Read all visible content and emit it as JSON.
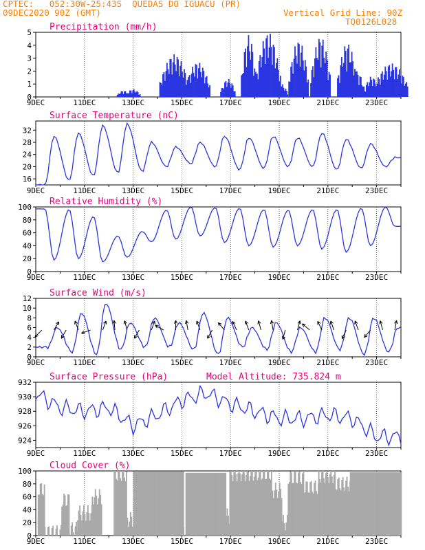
{
  "header": {
    "line1": "CPTEC:   052:30W-25:43S  QUEDAS DO IGUACU (PR)",
    "line2": "09DEC2020 90Z (GMT)",
    "vgrid": "Vertical Grid Line: 90Z",
    "code": "TQ0126L028"
  },
  "colors": {
    "header": "#ff7f00",
    "title": "#e8007a",
    "line": "#2a35e0",
    "bars": "#2a35e0",
    "cloud": "#a9a9a9"
  },
  "chart_data": [
    {
      "type": "bar",
      "title": "Precipitation (mm/h)",
      "x_ticks": [
        "9DEC",
        "11DEC",
        "13DEC",
        "15DEC",
        "17DEC",
        "19DEC",
        "21DEC",
        "23DEC"
      ],
      "x_range_days": [
        9,
        24
      ],
      "ylim": [
        0,
        5
      ],
      "y_ticks": [
        0,
        1,
        2,
        3,
        4,
        5
      ],
      "bursts": [
        {
          "center": 12.6,
          "width": 0.25,
          "peak": 0.5
        },
        {
          "center": 13.0,
          "width": 0.3,
          "peak": 0.6
        },
        {
          "center": 14.7,
          "width": 0.6,
          "peak": 3.3
        },
        {
          "center": 15.65,
          "width": 0.5,
          "peak": 2.7
        },
        {
          "center": 16.9,
          "width": 0.3,
          "peak": 1.4
        },
        {
          "center": 17.75,
          "width": 0.3,
          "peak": 4.8
        },
        {
          "center": 18.55,
          "width": 0.5,
          "peak": 5.0
        },
        {
          "center": 19.1,
          "width": 0.25,
          "peak": 1.0
        },
        {
          "center": 19.8,
          "width": 0.4,
          "peak": 4.4
        },
        {
          "center": 20.7,
          "width": 0.4,
          "peak": 4.7
        },
        {
          "center": 21.8,
          "width": 0.4,
          "peak": 4.2
        },
        {
          "center": 22.2,
          "width": 0.3,
          "peak": 2.0
        },
        {
          "center": 22.8,
          "width": 0.3,
          "peak": 1.6
        },
        {
          "center": 23.6,
          "width": 0.7,
          "peak": 2.6
        }
      ]
    },
    {
      "type": "line",
      "title": "Surface Temperature (nC)",
      "x_ticks": [
        "9DEC",
        "11DEC",
        "13DEC",
        "15DEC",
        "17DEC",
        "19DEC",
        "21DEC",
        "23DEC"
      ],
      "ylim": [
        14,
        35
      ],
      "y_ticks": [
        16,
        20,
        24,
        28,
        32
      ],
      "daily_min": [
        14.0,
        15.5,
        17.0,
        18.0,
        18.5,
        20.0,
        21.0,
        20.0,
        19.0,
        19.5,
        20.0,
        20.0,
        19.0,
        19.5,
        20.0
      ],
      "daily_max": [
        30.0,
        31.0,
        33.5,
        34.0,
        28.0,
        26.5,
        28.0,
        30.0,
        29.5,
        30.0,
        29.5,
        31.0,
        29.0,
        27.5,
        23.0
      ],
      "hour_of_min": 9,
      "hour_of_max": 18
    },
    {
      "type": "line",
      "title": "Relative Humidity (%)",
      "x_ticks": [
        "9DEC",
        "11DEC",
        "13DEC",
        "15DEC",
        "17DEC",
        "19DEC",
        "21DEC",
        "23DEC"
      ],
      "ylim": [
        0,
        100
      ],
      "y_ticks": [
        0,
        20,
        40,
        60,
        80,
        100
      ],
      "daily_max": [
        97,
        96,
        85,
        55,
        62,
        95,
        100,
        99,
        98,
        96,
        95,
        96,
        96,
        98,
        100
      ],
      "daily_min": [
        18,
        20,
        15,
        22,
        46,
        50,
        55,
        45,
        40,
        38,
        40,
        35,
        30,
        40,
        70
      ],
      "hour_of_min": 18,
      "hour_of_max": 9
    },
    {
      "type": "line",
      "title": "Surface Wind (m/s)",
      "x_ticks": [
        "9DEC",
        "11DEC",
        "13DEC",
        "15DEC",
        "17DEC",
        "19DEC",
        "21DEC",
        "23DEC"
      ],
      "ylim": [
        0,
        12
      ],
      "y_ticks": [
        0,
        2,
        4,
        6,
        8,
        10,
        12
      ],
      "daily_min": [
        2.0,
        1.0,
        0.5,
        1.5,
        2.0,
        2.0,
        1.5,
        0.5,
        2.0,
        1.5,
        1.0,
        1.0,
        1.5,
        0.5,
        1.0
      ],
      "daily_max": [
        6.0,
        9.0,
        11.0,
        7.0,
        8.0,
        7.0,
        9.0,
        8.0,
        6.0,
        7.0,
        6.0,
        8.0,
        8.0,
        8.0,
        6.0
      ],
      "hour_of_min": 12,
      "hour_of_max": 21,
      "wind_vectors_deg": [
        225,
        60,
        240,
        110,
        200,
        70,
        95,
        105,
        240,
        70,
        150,
        90,
        100,
        110,
        240,
        130,
        115,
        110,
        105,
        100,
        255,
        75,
        140,
        115,
        110,
        245,
        110,
        230,
        105,
        80
      ]
    },
    {
      "type": "line",
      "title": "Surface Pressure (hPa)",
      "annotation": "Model Altitude: 735.824 m",
      "x_ticks": [
        "9DEC",
        "11DEC",
        "13DEC",
        "15DEC",
        "17DEC",
        "19DEC",
        "21DEC",
        "23DEC"
      ],
      "ylim": [
        923,
        932
      ],
      "y_ticks": [
        924,
        926,
        928,
        930,
        932
      ],
      "daily_mean": [
        930.5,
        928.5,
        928.0,
        928.5,
        926.0,
        927.5,
        929.5,
        930.5,
        929.0,
        928.0,
        927.0,
        927.0,
        927.5,
        927.0,
        924.5
      ],
      "diurnal_amplitude": 1.5
    },
    {
      "type": "bar",
      "title": "Cloud Cover (%)",
      "x_ticks": [
        "9DEC",
        "11DEC",
        "13DEC",
        "15DEC",
        "17DEC",
        "19DEC",
        "21DEC",
        "23DEC"
      ],
      "ylim": [
        0,
        100
      ],
      "y_ticks": [
        0,
        20,
        40,
        60,
        80,
        100
      ],
      "segments": [
        {
          "start": 9.0,
          "end": 9.08,
          "value": 0
        },
        {
          "start": 9.08,
          "end": 9.35,
          "value": 72
        },
        {
          "start": 9.35,
          "end": 10.05,
          "value": 5
        },
        {
          "start": 10.05,
          "end": 10.35,
          "value": 55
        },
        {
          "start": 10.35,
          "end": 10.7,
          "value": 10
        },
        {
          "start": 10.7,
          "end": 11.3,
          "value": 35
        },
        {
          "start": 11.3,
          "end": 11.7,
          "value": 60
        },
        {
          "start": 11.7,
          "end": 12.2,
          "value": 0
        },
        {
          "start": 12.2,
          "end": 12.7,
          "value": 95
        },
        {
          "start": 12.7,
          "end": 13.0,
          "value": 25
        },
        {
          "start": 13.0,
          "end": 15.05,
          "value": 99
        },
        {
          "start": 15.05,
          "end": 15.15,
          "value": 5
        },
        {
          "start": 15.15,
          "end": 16.8,
          "value": 97
        },
        {
          "start": 16.8,
          "end": 16.95,
          "value": 30
        },
        {
          "start": 16.95,
          "end": 18.7,
          "value": 96
        },
        {
          "start": 18.7,
          "end": 19.1,
          "value": 70
        },
        {
          "start": 19.1,
          "end": 19.35,
          "value": 20
        },
        {
          "start": 19.35,
          "end": 20.0,
          "value": 90
        },
        {
          "start": 20.0,
          "end": 20.6,
          "value": 75
        },
        {
          "start": 20.6,
          "end": 21.3,
          "value": 93
        },
        {
          "start": 21.3,
          "end": 21.9,
          "value": 80
        },
        {
          "start": 21.9,
          "end": 24.0,
          "value": 98
        }
      ]
    }
  ]
}
